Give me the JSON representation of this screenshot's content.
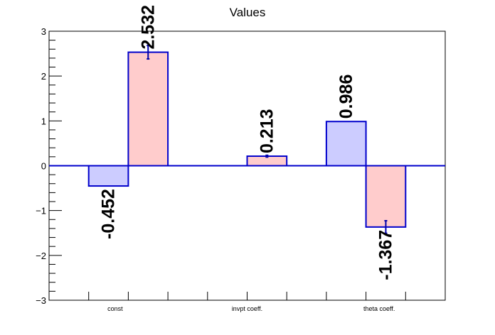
{
  "chart_data": {
    "type": "bar",
    "title": "Values",
    "xlabel": "",
    "ylabel": "",
    "ylim": [
      -3,
      3
    ],
    "yticks": [
      -3,
      -2,
      -1,
      0,
      1,
      2,
      3
    ],
    "ytick_labels": [
      "−3",
      "−2",
      "−1",
      "0",
      "1",
      "2",
      "3"
    ],
    "categories": [
      "const",
      "invpt coeff.",
      "theta coeff."
    ],
    "series": [
      {
        "color": "#ccccff",
        "values": [
          -0.452,
          null,
          0.986
        ],
        "errors": [
          0.0,
          null,
          0.0
        ],
        "labels": [
          "-0.452",
          "",
          "0.986"
        ]
      },
      {
        "color": "#ffcccc",
        "values": [
          2.532,
          0.213,
          -1.367
        ],
        "errors": [
          0.15,
          0.02,
          0.14
        ],
        "labels": [
          "2.532",
          "0.213",
          "-1.367"
        ]
      }
    ],
    "bar_outline_color": "#0000cc",
    "grid": false,
    "legend": "none"
  }
}
